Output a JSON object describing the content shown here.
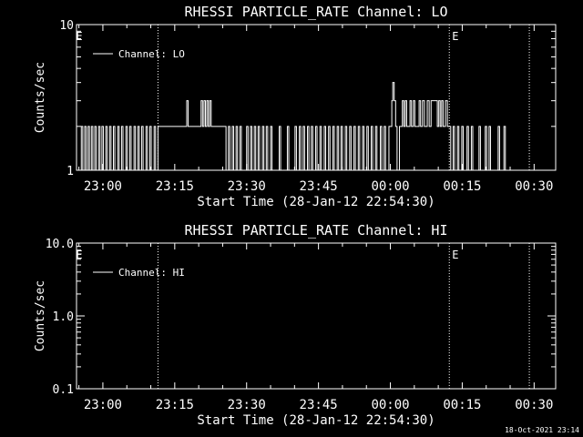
{
  "footer_timestamp": "18-Oct-2021 23:14",
  "x_tick_labels": [
    "23:00",
    "23:15",
    "23:30",
    "23:45",
    "00:00",
    "00:15",
    "00:30"
  ],
  "chart_data": [
    {
      "type": "line",
      "title": "RHESSI PARTICLE_RATE Channel: LO",
      "xlabel": "Start Time (28-Jan-12 22:54:30)",
      "ylabel": "Counts/sec",
      "y_scale": "log",
      "ylim": [
        1,
        10
      ],
      "y_tick_labels": [
        "1",
        "10"
      ],
      "x_axis_start": "28-Jan-12 22:54:30",
      "x_range_minutes": [
        0,
        100
      ],
      "x_ticks_minutes": [
        5.5,
        20.5,
        35.5,
        50.5,
        65.5,
        80.5,
        95.5
      ],
      "grid": false,
      "legend": {
        "position": "top-left",
        "entries": [
          "Channel: LO"
        ]
      },
      "markers": {
        "label": "E",
        "x_minutes": [
          -0.5,
          78
        ]
      },
      "vlines_x_minutes": [
        17.0,
        77.8,
        94.5
      ],
      "series": [
        {
          "name": "Channel: LO",
          "steps": [
            [
              0.5,
              1
            ],
            [
              1.0,
              2
            ],
            [
              1.3,
              1
            ],
            [
              1.7,
              2
            ],
            [
              2.0,
              1
            ],
            [
              2.4,
              2
            ],
            [
              2.7,
              1
            ],
            [
              3.1,
              2
            ],
            [
              3.4,
              1
            ],
            [
              3.8,
              2
            ],
            [
              4.1,
              1
            ],
            [
              4.6,
              2
            ],
            [
              4.9,
              1
            ],
            [
              5.3,
              2
            ],
            [
              5.6,
              1
            ],
            [
              6.1,
              2
            ],
            [
              6.4,
              1
            ],
            [
              6.9,
              2
            ],
            [
              7.2,
              1
            ],
            [
              7.7,
              2
            ],
            [
              8.0,
              1
            ],
            [
              8.6,
              2
            ],
            [
              8.9,
              1
            ],
            [
              9.4,
              2
            ],
            [
              9.7,
              1
            ],
            [
              10.3,
              2
            ],
            [
              10.6,
              1
            ],
            [
              11.1,
              2
            ],
            [
              11.4,
              1
            ],
            [
              12.0,
              2
            ],
            [
              12.3,
              1
            ],
            [
              12.8,
              2
            ],
            [
              13.1,
              1
            ],
            [
              13.6,
              2
            ],
            [
              13.9,
              1
            ],
            [
              14.5,
              2
            ],
            [
              14.8,
              1
            ],
            [
              15.3,
              2
            ],
            [
              15.6,
              1
            ],
            [
              16.2,
              2
            ],
            [
              16.5,
              1
            ],
            [
              17.0,
              2
            ],
            [
              23.0,
              3
            ],
            [
              23.3,
              2
            ],
            [
              26.0,
              3
            ],
            [
              26.3,
              2
            ],
            [
              26.6,
              3
            ],
            [
              26.9,
              2
            ],
            [
              27.2,
              3
            ],
            [
              27.5,
              2
            ],
            [
              27.8,
              3
            ],
            [
              28.1,
              2
            ],
            [
              31.2,
              1
            ],
            [
              31.7,
              2
            ],
            [
              32.0,
              1
            ],
            [
              32.5,
              2
            ],
            [
              32.8,
              1
            ],
            [
              33.3,
              2
            ],
            [
              33.6,
              1
            ],
            [
              34.1,
              2
            ],
            [
              34.4,
              1
            ],
            [
              35.5,
              2
            ],
            [
              35.8,
              1
            ],
            [
              36.3,
              2
            ],
            [
              36.6,
              1
            ],
            [
              37.1,
              2
            ],
            [
              37.4,
              1
            ],
            [
              37.9,
              2
            ],
            [
              38.2,
              1
            ],
            [
              38.8,
              2
            ],
            [
              39.1,
              1
            ],
            [
              39.6,
              2
            ],
            [
              39.9,
              1
            ],
            [
              40.5,
              2
            ],
            [
              40.8,
              1
            ],
            [
              42.3,
              2
            ],
            [
              42.6,
              1
            ],
            [
              44.0,
              2
            ],
            [
              44.3,
              1
            ],
            [
              45.6,
              2
            ],
            [
              45.9,
              1
            ],
            [
              46.5,
              2
            ],
            [
              46.8,
              1
            ],
            [
              47.3,
              2
            ],
            [
              47.6,
              1
            ],
            [
              48.2,
              2
            ],
            [
              48.5,
              1
            ],
            [
              49.0,
              2
            ],
            [
              49.3,
              1
            ],
            [
              49.9,
              2
            ],
            [
              50.2,
              1
            ],
            [
              50.8,
              2
            ],
            [
              51.1,
              1
            ],
            [
              51.7,
              2
            ],
            [
              52.0,
              1
            ],
            [
              52.6,
              2
            ],
            [
              52.9,
              1
            ],
            [
              53.5,
              2
            ],
            [
              53.8,
              1
            ],
            [
              54.4,
              2
            ],
            [
              54.7,
              1
            ],
            [
              55.2,
              2
            ],
            [
              55.5,
              1
            ],
            [
              56.1,
              2
            ],
            [
              56.4,
              1
            ],
            [
              57.0,
              2
            ],
            [
              57.3,
              1
            ],
            [
              57.9,
              2
            ],
            [
              58.2,
              1
            ],
            [
              58.8,
              2
            ],
            [
              59.1,
              1
            ],
            [
              59.7,
              2
            ],
            [
              60.0,
              1
            ],
            [
              60.6,
              2
            ],
            [
              60.9,
              1
            ],
            [
              61.5,
              2
            ],
            [
              61.8,
              1
            ],
            [
              62.4,
              2
            ],
            [
              62.7,
              1
            ],
            [
              63.4,
              2
            ],
            [
              63.7,
              1
            ],
            [
              64.2,
              2
            ],
            [
              64.5,
              1
            ],
            [
              65.2,
              2
            ],
            [
              65.8,
              3
            ],
            [
              66.0,
              4
            ],
            [
              66.3,
              3
            ],
            [
              66.6,
              2
            ],
            [
              66.9,
              1
            ],
            [
              67.4,
              2
            ],
            [
              68.0,
              3
            ],
            [
              68.3,
              2
            ],
            [
              68.6,
              3
            ],
            [
              68.9,
              2
            ],
            [
              69.6,
              3
            ],
            [
              69.9,
              2
            ],
            [
              70.3,
              3
            ],
            [
              70.6,
              2
            ],
            [
              71.5,
              3
            ],
            [
              71.8,
              2
            ],
            [
              72.2,
              3
            ],
            [
              72.6,
              2
            ],
            [
              73.2,
              3
            ],
            [
              73.6,
              2
            ],
            [
              74.0,
              3
            ],
            [
              75.3,
              2
            ],
            [
              75.6,
              3
            ],
            [
              75.9,
              2
            ],
            [
              76.2,
              3
            ],
            [
              76.5,
              2
            ],
            [
              77.0,
              3
            ],
            [
              77.4,
              2
            ],
            [
              78.1,
              1
            ],
            [
              78.6,
              2
            ],
            [
              78.9,
              1
            ],
            [
              79.5,
              2
            ],
            [
              79.8,
              1
            ],
            [
              80.4,
              2
            ],
            [
              80.7,
              1
            ],
            [
              81.5,
              2
            ],
            [
              81.8,
              1
            ],
            [
              82.4,
              2
            ],
            [
              82.7,
              1
            ],
            [
              84.0,
              2
            ],
            [
              84.3,
              1
            ],
            [
              85.3,
              2
            ],
            [
              85.6,
              1
            ],
            [
              86.1,
              2
            ],
            [
              86.4,
              1
            ],
            [
              88.0,
              2
            ],
            [
              88.3,
              1
            ],
            [
              89.2,
              2
            ],
            [
              89.5,
              1
            ]
          ],
          "end_minutes": 94.5
        }
      ]
    },
    {
      "type": "line",
      "title": "RHESSI PARTICLE_RATE Channel: HI",
      "xlabel": "Start Time (28-Jan-12 22:54:30)",
      "ylabel": "Counts/sec",
      "y_scale": "log",
      "ylim": [
        0.1,
        10
      ],
      "y_tick_labels": [
        "0.1",
        "1.0",
        "10.0"
      ],
      "x_axis_start": "28-Jan-12 22:54:30",
      "x_range_minutes": [
        0,
        100
      ],
      "x_ticks_minutes": [
        5.5,
        20.5,
        35.5,
        50.5,
        65.5,
        80.5,
        95.5
      ],
      "grid": false,
      "legend": {
        "position": "top-left",
        "entries": [
          "Channel: HI"
        ]
      },
      "markers": {
        "label": "E",
        "x_minutes": [
          -0.5,
          78
        ]
      },
      "vlines_x_minutes": [
        17.0,
        77.8,
        94.5
      ],
      "series": [
        {
          "name": "Channel: HI",
          "steps": [],
          "end_minutes": 94.5
        }
      ]
    }
  ]
}
